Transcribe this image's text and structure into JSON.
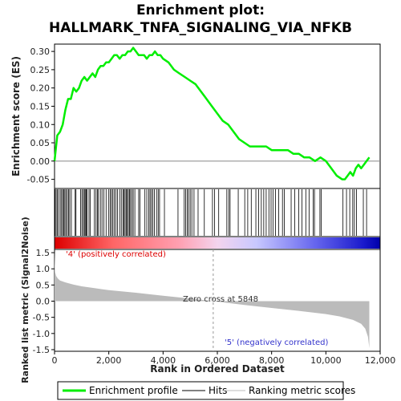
{
  "chart_data": {
    "type": "line",
    "title_line1": "Enrichment plot:",
    "title_line2": "HALLMARK_TNFA_SIGNALING_VIA_NFKB",
    "es_panel": {
      "ylabel": "Enrichment score (ES)",
      "ylim": [
        -0.075,
        0.32
      ],
      "yticks": [
        "0.30",
        "0.25",
        "0.20",
        "0.15",
        "0.10",
        "0.05",
        "0.00",
        "-0.05"
      ],
      "ytick_values": [
        0.3,
        0.25,
        0.2,
        0.15,
        0.1,
        0.05,
        0.0,
        -0.05
      ],
      "series_name": "Enrichment profile",
      "color": "#00ee00",
      "x": [
        0,
        100,
        200,
        300,
        400,
        500,
        600,
        700,
        800,
        900,
        1000,
        1100,
        1200,
        1300,
        1400,
        1500,
        1600,
        1700,
        1800,
        1900,
        2000,
        2100,
        2200,
        2300,
        2400,
        2500,
        2600,
        2700,
        2800,
        2900,
        3000,
        3100,
        3200,
        3300,
        3400,
        3500,
        3600,
        3700,
        3800,
        3900,
        4000,
        4200,
        4400,
        4600,
        4800,
        5000,
        5200,
        5400,
        5600,
        5800,
        6000,
        6200,
        6400,
        6600,
        6800,
        7000,
        7200,
        7400,
        7600,
        7800,
        8000,
        8200,
        8400,
        8600,
        8800,
        9000,
        9200,
        9400,
        9600,
        9800,
        10000,
        10200,
        10400,
        10600,
        10700,
        10800,
        10900,
        11000,
        11100,
        11200,
        11300,
        11400,
        11500,
        11600
      ],
      "y": [
        0.0,
        0.07,
        0.08,
        0.1,
        0.14,
        0.17,
        0.17,
        0.2,
        0.19,
        0.2,
        0.22,
        0.23,
        0.22,
        0.23,
        0.24,
        0.23,
        0.25,
        0.26,
        0.26,
        0.27,
        0.27,
        0.28,
        0.29,
        0.29,
        0.28,
        0.29,
        0.29,
        0.3,
        0.3,
        0.31,
        0.3,
        0.29,
        0.29,
        0.29,
        0.28,
        0.29,
        0.29,
        0.3,
        0.29,
        0.29,
        0.28,
        0.27,
        0.25,
        0.24,
        0.23,
        0.22,
        0.21,
        0.19,
        0.17,
        0.15,
        0.13,
        0.11,
        0.1,
        0.08,
        0.06,
        0.05,
        0.04,
        0.04,
        0.04,
        0.04,
        0.03,
        0.03,
        0.03,
        0.03,
        0.02,
        0.02,
        0.01,
        0.01,
        0.0,
        0.01,
        0.0,
        -0.02,
        -0.04,
        -0.05,
        -0.05,
        -0.04,
        -0.03,
        -0.04,
        -0.02,
        -0.01,
        -0.02,
        -0.01,
        0.0,
        0.01
      ]
    },
    "hits": [
      20,
      60,
      100,
      150,
      210,
      260,
      300,
      340,
      380,
      420,
      470,
      520,
      560,
      620,
      760,
      790,
      960,
      1010,
      1060,
      1100,
      1130,
      1170,
      1200,
      1270,
      1320,
      1470,
      1530,
      1580,
      1620,
      1690,
      1750,
      1820,
      1900,
      2000,
      2050,
      2100,
      2150,
      2200,
      2260,
      2320,
      2400,
      2460,
      2520,
      2560,
      2600,
      2640,
      2680,
      2720,
      2760,
      2800,
      2850,
      2900,
      2960,
      3100,
      3150,
      3330,
      3400,
      3470,
      3520,
      3570,
      3620,
      3680,
      3760,
      3820,
      3870,
      4050,
      4550,
      4780,
      4830,
      4890,
      4940,
      5000,
      5060,
      5140,
      5290,
      5520,
      5820,
      5900,
      6050,
      6350,
      6420,
      6470,
      6770,
      7010,
      7120,
      7250,
      7420,
      7520,
      7620,
      7710,
      7800,
      7900,
      7980,
      8050,
      8140,
      8260,
      8400,
      8470,
      8720,
      8850,
      9000,
      9120,
      9260,
      9380,
      9530,
      9580,
      9780,
      9830,
      10630,
      10760,
      10880,
      10990,
      11050,
      11130,
      11380,
      11500
    ],
    "rank_panel": {
      "ylabel": "Ranked list metric (Signal2Noise)",
      "ylim": [
        -1.55,
        1.6
      ],
      "yticks": [
        "1.5",
        "1.0",
        "0.5",
        "0.0",
        "-0.5",
        "-1.0",
        "-1.5"
      ],
      "ytick_values": [
        1.5,
        1.0,
        0.5,
        0.0,
        -0.5,
        -1.0,
        -1.5
      ],
      "metric_x": [
        0,
        20,
        60,
        120,
        200,
        400,
        700,
        1000,
        1500,
        2000,
        3000,
        4000,
        5000,
        5848,
        7000,
        8000,
        9000,
        10000,
        10500,
        11000,
        11300,
        11450,
        11550,
        11600
      ],
      "metric_y": [
        1.55,
        0.9,
        0.78,
        0.7,
        0.64,
        0.58,
        0.51,
        0.46,
        0.4,
        0.34,
        0.26,
        0.17,
        0.08,
        0.0,
        -0.12,
        -0.21,
        -0.3,
        -0.4,
        -0.47,
        -0.58,
        -0.7,
        -0.85,
        -1.1,
        -1.45
      ],
      "pos_label": "'4' (positively correlated)",
      "neg_label": "'5' (negatively correlated)",
      "zero_cross_label": "Zero cross at 5848",
      "zero_cross": 5848
    },
    "xlabel": "Rank in Ordered Dataset",
    "xlim": [
      0,
      12000
    ],
    "xticks": [
      "0",
      "2,000",
      "4,000",
      "6,000",
      "8,000",
      "10,000",
      "12,000"
    ],
    "xtick_values": [
      0,
      2000,
      4000,
      6000,
      8000,
      10000,
      12000
    ],
    "legend": [
      {
        "label": "Enrichment profile",
        "color": "#00ee00"
      },
      {
        "label": "Hits",
        "color": "#000000"
      },
      {
        "label": "Ranking metric scores",
        "color": "#bbbbbb"
      }
    ]
  }
}
